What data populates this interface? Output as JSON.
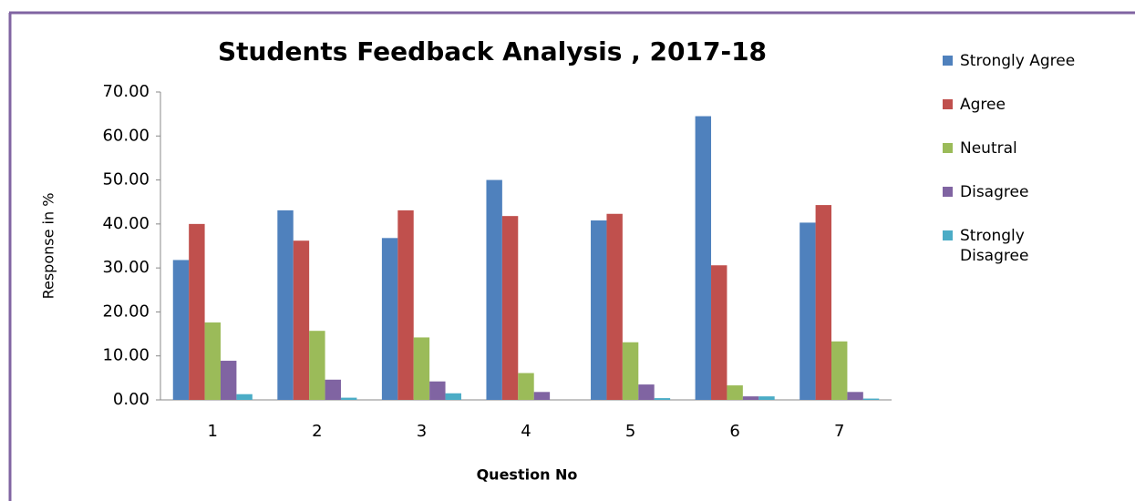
{
  "chart_data": {
    "type": "bar",
    "title": "Students Feedback Analysis , 2017-18",
    "xlabel": "Question No",
    "ylabel": "Response in %",
    "categories": [
      "1",
      "2",
      "3",
      "4",
      "5",
      "6",
      "7"
    ],
    "series": [
      {
        "name": "Strongly Agree",
        "color": "#4f81bd",
        "values": [
          31.8,
          43.1,
          36.8,
          50.0,
          40.8,
          64.5,
          40.3
        ]
      },
      {
        "name": "Agree",
        "color": "#c0504d",
        "values": [
          40.0,
          36.2,
          43.1,
          41.8,
          42.3,
          30.6,
          44.3
        ]
      },
      {
        "name": "Neutral",
        "color": "#9bbb59",
        "values": [
          17.6,
          15.7,
          14.2,
          6.1,
          13.1,
          3.3,
          13.3
        ]
      },
      {
        "name": "Disagree",
        "color": "#8064a2",
        "values": [
          8.9,
          4.6,
          4.2,
          1.8,
          3.5,
          0.8,
          1.8
        ]
      },
      {
        "name": "Strongly Disagree",
        "color": "#4bacc6",
        "values": [
          1.3,
          0.5,
          1.5,
          0.0,
          0.4,
          0.8,
          0.3
        ]
      }
    ],
    "ylim": [
      0,
      70
    ],
    "yticks": [
      {
        "value": 0,
        "label": "0.00"
      },
      {
        "value": 10,
        "label": "10.00"
      },
      {
        "value": 20,
        "label": "20.00"
      },
      {
        "value": 30,
        "label": "30.00"
      },
      {
        "value": 40,
        "label": "40.00"
      },
      {
        "value": 50,
        "label": "50.00"
      },
      {
        "value": 60,
        "label": "60.00"
      },
      {
        "value": 70,
        "label": "70.00"
      }
    ],
    "grid": false,
    "legend": "right"
  }
}
